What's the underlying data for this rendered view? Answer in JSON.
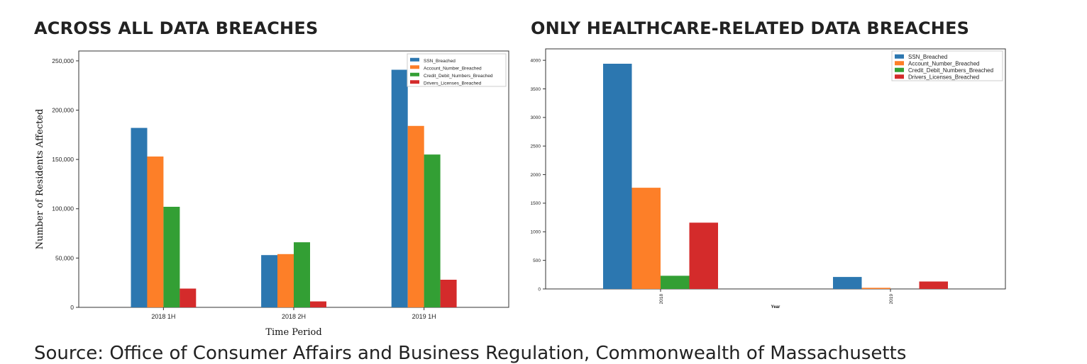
{
  "titles": {
    "left": "ACROSS ALL DATA BREACHES",
    "right": "ONLY HEALTHCARE-RELATED DATA BREACHES"
  },
  "source_text": "Source: Office of Consumer Affairs and Business Regulation, Commonwealth of Massachusetts",
  "colors": {
    "SSN_Breached": "#2c77b0",
    "Account_Number_Breached": "#fd7f28",
    "Credit_Debit_Numbers_Breached": "#339f34",
    "Drivers_Licenses_Breached": "#d42b2b"
  },
  "chart_data": [
    {
      "type": "bar",
      "xlabel": "Time Period",
      "ylabel": "Number of Residents Affected",
      "categories": [
        "2018 1H",
        "2018 2H",
        "2019 1H"
      ],
      "ylim": [
        0,
        260000
      ],
      "yticks": [
        0,
        50000,
        100000,
        150000,
        200000,
        250000
      ],
      "ytick_labels": [
        "0",
        "50,000",
        "100,000",
        "150,000",
        "200,000",
        "250,000"
      ],
      "legend_position": "top-right",
      "grid": false,
      "series": [
        {
          "name": "SSN_Breached",
          "values": [
            182000,
            53000,
            241000
          ]
        },
        {
          "name": "Account_Number_Breached",
          "values": [
            153000,
            54000,
            184000
          ]
        },
        {
          "name": "Credit_Debit_Numbers_Breached",
          "values": [
            102000,
            66000,
            155000
          ]
        },
        {
          "name": "Drivers_Licenses_Breached",
          "values": [
            19000,
            6000,
            28000
          ]
        }
      ]
    },
    {
      "type": "bar",
      "xlabel": "Year",
      "ylabel": "",
      "categories": [
        "2018",
        "2019"
      ],
      "ylim": [
        0,
        4200
      ],
      "yticks": [
        0,
        500,
        1000,
        1500,
        2000,
        2500,
        3000,
        3500,
        4000
      ],
      "ytick_labels": [
        "0",
        "500",
        "1000",
        "1500",
        "2000",
        "2500",
        "3000",
        "3500",
        "4000"
      ],
      "legend_position": "top-right",
      "grid": false,
      "series": [
        {
          "name": "SSN_Breached",
          "values": [
            3940,
            210
          ]
        },
        {
          "name": "Account_Number_Breached",
          "values": [
            1770,
            20
          ]
        },
        {
          "name": "Credit_Debit_Numbers_Breached",
          "values": [
            230,
            0
          ]
        },
        {
          "name": "Drivers_Licenses_Breached",
          "values": [
            1160,
            130
          ]
        }
      ]
    }
  ]
}
